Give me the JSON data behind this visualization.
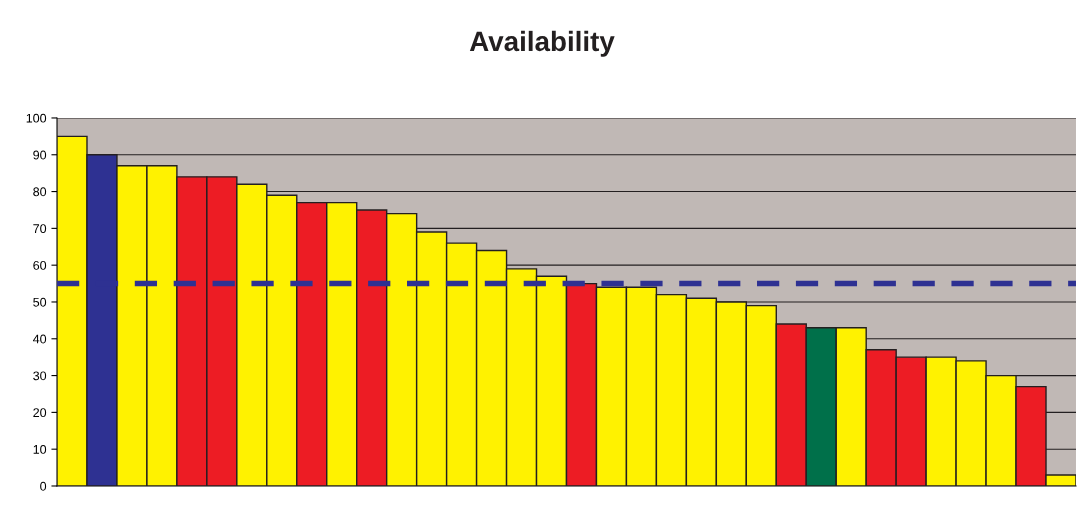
{
  "chart_data": {
    "type": "bar",
    "title": "Availability",
    "categories": [
      null,
      null,
      null,
      null,
      null,
      null,
      null,
      null,
      null,
      null,
      null,
      null,
      null,
      null,
      null,
      null,
      null,
      null,
      null,
      null,
      null,
      null,
      null,
      null,
      null,
      null,
      null,
      null,
      null,
      null,
      null,
      null,
      null,
      null
    ],
    "values": [
      95,
      90,
      87,
      87,
      84,
      84,
      82,
      79,
      77,
      77,
      75,
      74,
      69,
      66,
      64,
      59,
      57,
      55,
      54,
      54,
      52,
      51,
      50,
      49,
      44,
      43,
      43,
      37,
      35,
      35,
      34,
      30,
      27,
      3
    ],
    "colors": [
      "#fff200",
      "#2e3192",
      "#fff200",
      "#fff200",
      "#ed1c24",
      "#ed1c24",
      "#fff200",
      "#fff200",
      "#ed1c24",
      "#fff200",
      "#ed1c24",
      "#fff200",
      "#fff200",
      "#fff200",
      "#fff200",
      "#fff200",
      "#fff200",
      "#ed1c24",
      "#fff200",
      "#fff200",
      "#fff200",
      "#fff200",
      "#fff200",
      "#fff200",
      "#ed1c24",
      "#00704a",
      "#fff200",
      "#ed1c24",
      "#ed1c24",
      "#fff200",
      "#fff200",
      "#fff200",
      "#ed1c24",
      "#fff200"
    ],
    "ylim": [
      0,
      100
    ],
    "yticks": [
      0,
      10,
      20,
      30,
      40,
      50,
      60,
      70,
      80,
      90,
      100
    ],
    "grid": "y",
    "ref_lines": [
      {
        "axis": "y",
        "value": 55,
        "color": "#2e3192",
        "line_style": "dashed"
      }
    ]
  }
}
